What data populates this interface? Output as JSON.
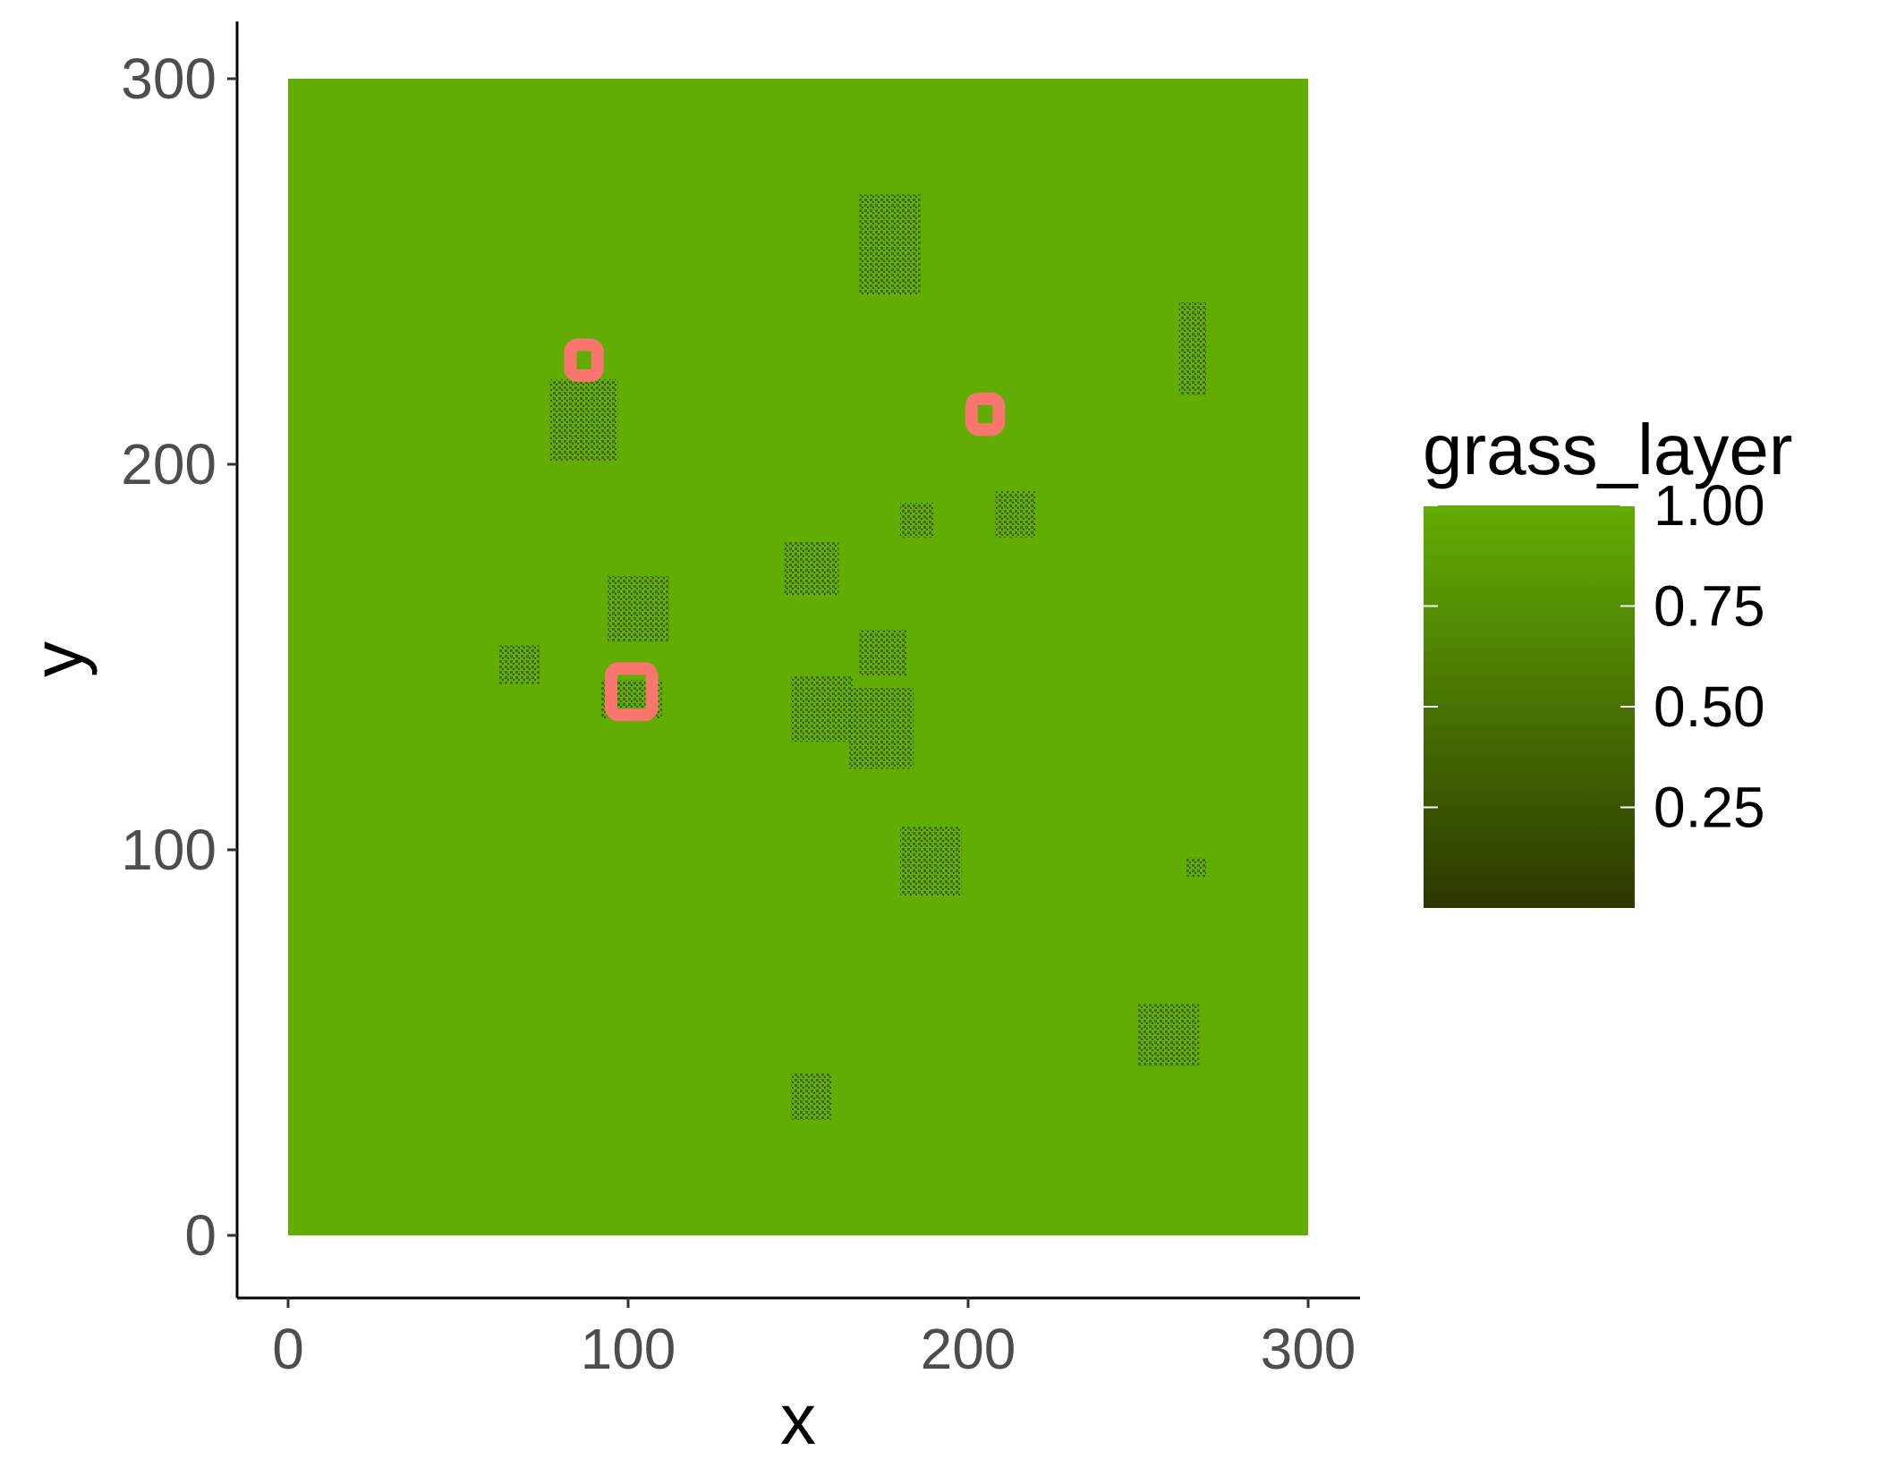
{
  "chart_data": {
    "type": "heatmap",
    "xlabel": "x",
    "ylabel": "y",
    "xlim": [
      0,
      300
    ],
    "ylim": [
      0,
      300
    ],
    "x_ticks": [
      "0",
      "100",
      "200",
      "300"
    ],
    "y_ticks": [
      "0",
      "100",
      "200",
      "300"
    ],
    "grid": false,
    "background_value": 1.0,
    "legend": {
      "title": "grass_layer",
      "placement": "right",
      "range": [
        0,
        1
      ],
      "ticks": [
        "1.00",
        "0.75",
        "0.50",
        "0.25"
      ],
      "low_color": "#2d3800",
      "high_color": "#62ad03"
    },
    "patches": [
      {
        "x0": 168,
        "x1": 186,
        "y0": 244,
        "y1": 270,
        "value": 0.55
      },
      {
        "x0": 262,
        "x1": 270,
        "y0": 218,
        "y1": 242,
        "value": 0.55
      },
      {
        "x0": 77,
        "x1": 97,
        "y0": 201,
        "y1": 222,
        "value": 0.55
      },
      {
        "x0": 180,
        "x1": 190,
        "y0": 181,
        "y1": 190,
        "value": 0.55
      },
      {
        "x0": 208,
        "x1": 220,
        "y0": 181,
        "y1": 193,
        "value": 0.55
      },
      {
        "x0": 146,
        "x1": 162,
        "y0": 166,
        "y1": 180,
        "value": 0.55
      },
      {
        "x0": 94,
        "x1": 112,
        "y0": 154,
        "y1": 171,
        "value": 0.55
      },
      {
        "x0": 62,
        "x1": 74,
        "y0": 143,
        "y1": 153,
        "value": 0.55
      },
      {
        "x0": 168,
        "x1": 182,
        "y0": 145,
        "y1": 157,
        "value": 0.55
      },
      {
        "x0": 92,
        "x1": 110,
        "y0": 134,
        "y1": 144,
        "value": 0.55
      },
      {
        "x0": 148,
        "x1": 166,
        "y0": 128,
        "y1": 145,
        "value": 0.55
      },
      {
        "x0": 165,
        "x1": 184,
        "y0": 121,
        "y1": 142,
        "value": 0.55
      },
      {
        "x0": 180,
        "x1": 198,
        "y0": 88,
        "y1": 106,
        "value": 0.55
      },
      {
        "x0": 264,
        "x1": 270,
        "y0": 93,
        "y1": 98,
        "value": 0.55
      },
      {
        "x0": 250,
        "x1": 268,
        "y0": 44,
        "y1": 60,
        "value": 0.55
      },
      {
        "x0": 148,
        "x1": 160,
        "y0": 30,
        "y1": 42,
        "value": 0.55
      }
    ],
    "highlight_boxes": [
      {
        "x": 87,
        "y": 227,
        "size": 8,
        "color": "#f8766d"
      },
      {
        "x": 205,
        "y": 213,
        "size": 8,
        "color": "#f8766d"
      },
      {
        "x": 101,
        "y": 141,
        "size": 12,
        "color": "#f8766d"
      }
    ]
  }
}
